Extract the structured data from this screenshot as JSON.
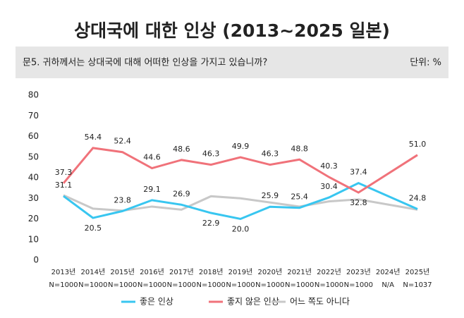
{
  "chart_data": {
    "type": "line",
    "title": "상대국에 대한 인상 (2013~2025 일본)",
    "subtitle": "문5. 귀하께서는 상대국에 대해 어떠한 인상을 가지고 있습니까?",
    "unit_label": "단위: %",
    "x": [
      2013,
      2014,
      2015,
      2016,
      2017,
      2018,
      2019,
      2020,
      2021,
      2022,
      2023,
      2025
    ],
    "xlim": [
      2013,
      2025
    ],
    "xticks": [
      {
        "value": 2013,
        "label": "2013년"
      },
      {
        "value": 2014,
        "label": "2014년"
      },
      {
        "value": 2015,
        "label": "2015년"
      },
      {
        "value": 2016,
        "label": "2016년"
      },
      {
        "value": 2017,
        "label": "2017년"
      },
      {
        "value": 2018,
        "label": "2018년"
      },
      {
        "value": 2019,
        "label": "2019년"
      },
      {
        "value": 2020,
        "label": "2020년"
      },
      {
        "value": 2021,
        "label": "2021년"
      },
      {
        "value": 2022,
        "label": "2022년"
      },
      {
        "value": 2023,
        "label": "2023년"
      },
      {
        "value": 2024,
        "label": "2024년"
      },
      {
        "value": 2025,
        "label": "2025년"
      }
    ],
    "sample_sizes": [
      "N=1000",
      "N=1000",
      "N=1000",
      "N=1000",
      "N=1000",
      "N=1000",
      "N=1000",
      "N=1000",
      "N=1000",
      "N=1000",
      "N=1000",
      "N/A",
      "N=1037"
    ],
    "ylim": [
      0,
      80
    ],
    "yticks": [
      0,
      10,
      20,
      30,
      40,
      50,
      60,
      70,
      80
    ],
    "grid": false,
    "series": [
      {
        "name": "좋은 인상",
        "color": "#38c6f0",
        "values": [
          31.1,
          20.5,
          23.8,
          29.1,
          26.9,
          22.9,
          20.0,
          25.9,
          25.4,
          30.4,
          37.4,
          24.8
        ],
        "value_labels": [
          "31.1",
          "20.5",
          "23.8",
          "29.1",
          "26.9",
          "22.9",
          "20.0",
          "25.9",
          "25.4",
          "30.4",
          "37.4",
          "24.8"
        ]
      },
      {
        "name": "좋지 않은 인상",
        "color": "#f0727a",
        "values": [
          37.3,
          54.4,
          52.4,
          44.6,
          48.6,
          46.3,
          49.9,
          46.3,
          48.8,
          40.3,
          32.8,
          51.0
        ],
        "value_labels": [
          "37.3",
          "54.4",
          "52.4",
          "44.6",
          "48.6",
          "46.3",
          "49.9",
          "46.3",
          "48.8",
          "40.3",
          "32.8",
          "51.0"
        ]
      },
      {
        "name": "어느 쪽도 아니다",
        "color": "#c8c8c8",
        "values": [
          31.5,
          25,
          24,
          26,
          24.5,
          31,
          30,
          28,
          26,
          28.5,
          29.5,
          24.5
        ]
      }
    ]
  }
}
